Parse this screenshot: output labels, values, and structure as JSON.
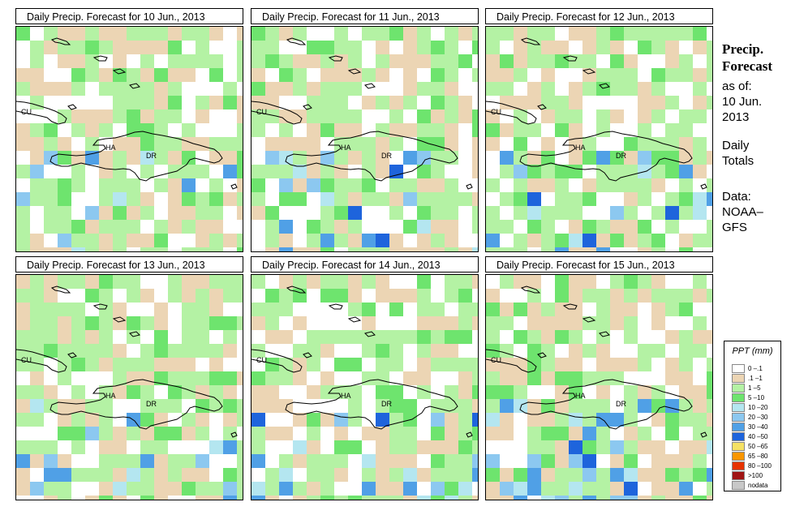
{
  "panels": [
    {
      "title": "Daily Precip. Forecast for  10 Jun., 2013",
      "seed": 11,
      "wet": 0.22
    },
    {
      "title": "Daily Precip. Forecast for  11 Jun., 2013",
      "seed": 23,
      "wet": 0.3
    },
    {
      "title": "Daily Precip. Forecast for  12 Jun., 2013",
      "seed": 37,
      "wet": 0.38
    },
    {
      "title": "Daily Precip. Forecast for  13 Jun., 2013",
      "seed": 51,
      "wet": 0.3
    },
    {
      "title": "Daily Precip. Forecast for  14 Jun., 2013",
      "seed": 67,
      "wet": 0.4
    },
    {
      "title": "Daily Precip. Forecast for  15 Jun., 2013",
      "seed": 83,
      "wet": 0.55
    }
  ],
  "map_labels": {
    "cuba": "CU",
    "haiti": "HA",
    "dr": "DR"
  },
  "side": {
    "title_line1": "Precip.",
    "title_line2": "Forecast",
    "asof": "as of:",
    "date_line1": "10 Jun.",
    "date_line2": "2013",
    "daily_line1": "Daily",
    "daily_line2": "Totals",
    "data_line1": "Data:",
    "data_line2": "NOAA–",
    "data_line3": "GFS"
  },
  "legend": {
    "title": "PPT (mm)",
    "items": [
      {
        "label": "0 –.1",
        "color": "#ffffff"
      },
      {
        "label": ".1 –1",
        "color": "#ecd5b4"
      },
      {
        "label": "1 –5",
        "color": "#b4f2a4"
      },
      {
        "label": "5 –10",
        "color": "#6ee46e"
      },
      {
        "label": "10 –20",
        "color": "#b4e6f0"
      },
      {
        "label": "20 –30",
        "color": "#8cc8f0"
      },
      {
        "label": "30 –40",
        "color": "#50a0e6"
      },
      {
        "label": "40 –50",
        "color": "#1e64dc"
      },
      {
        "label": "50 –65",
        "color": "#f5e164"
      },
      {
        "label": "65 –80",
        "color": "#fa9600"
      },
      {
        "label": "80 –100",
        "color": "#e63200"
      },
      {
        "label": ">100",
        "color": "#a01414"
      },
      {
        "label": "nodata",
        "color": "#c8c8c8"
      }
    ]
  }
}
